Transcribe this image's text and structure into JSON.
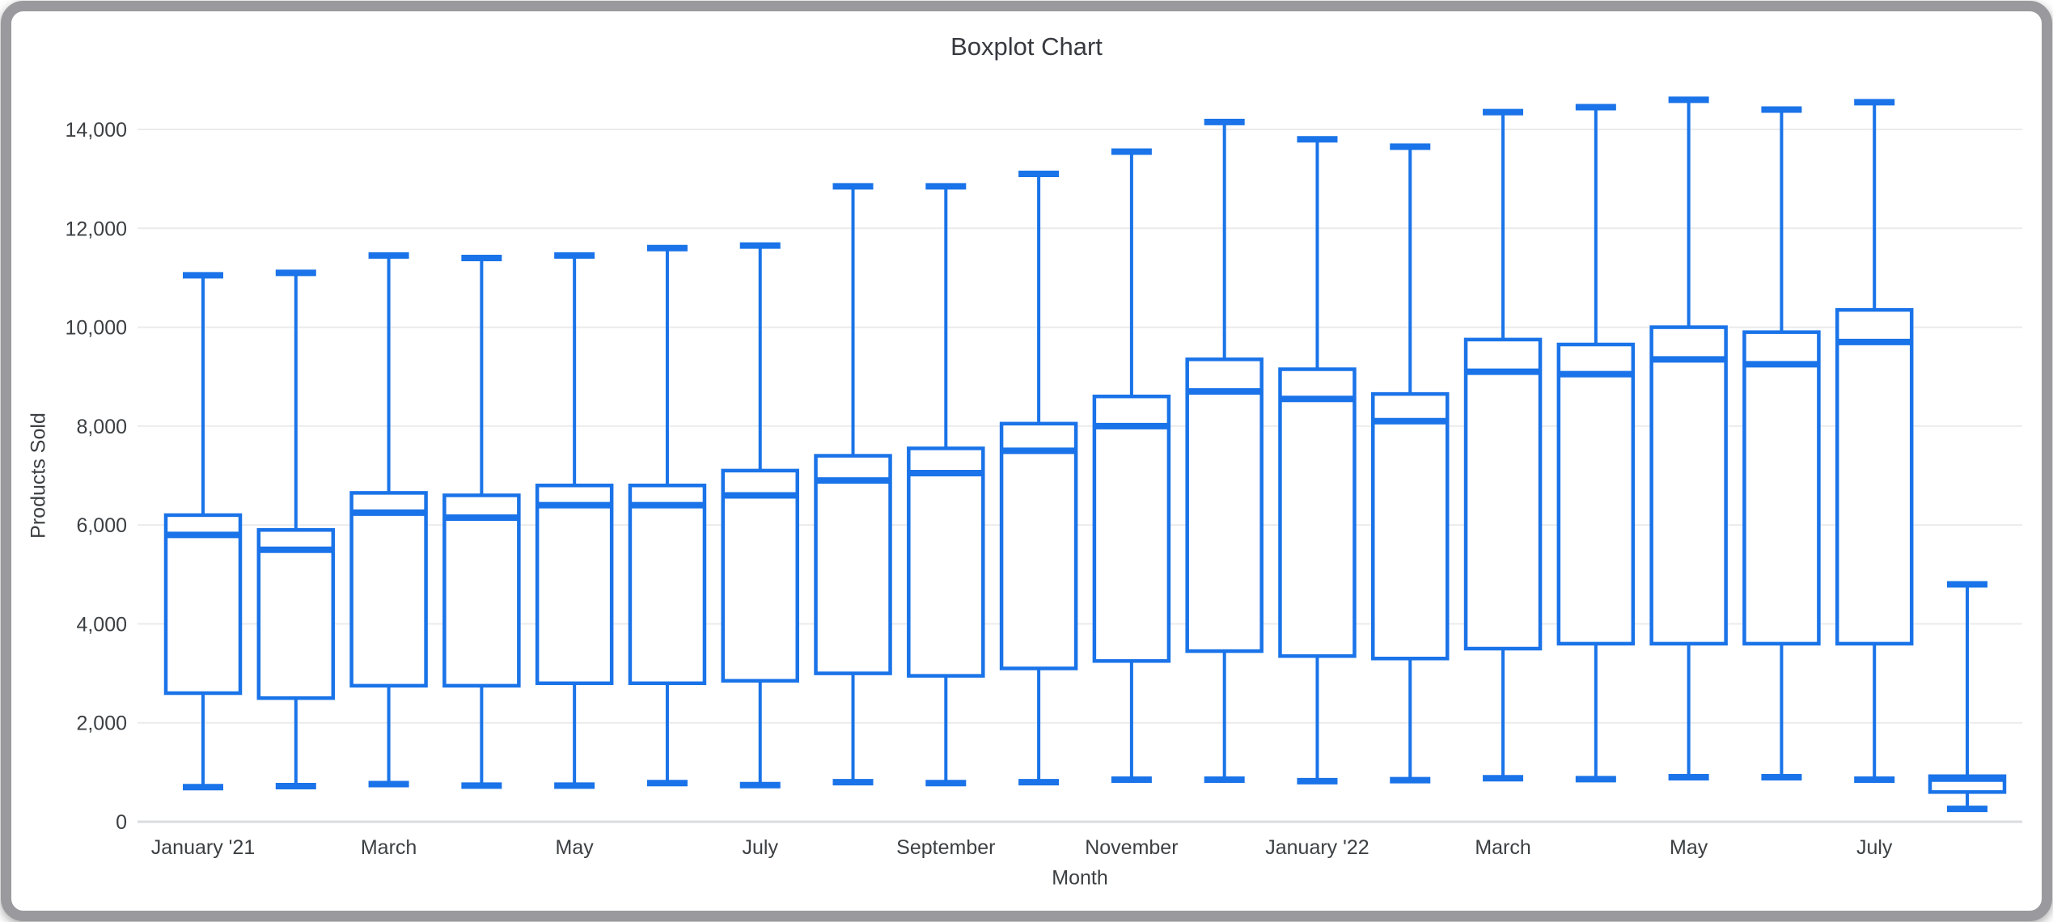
{
  "chart_data": {
    "type": "boxplot",
    "title": "Boxplot Chart",
    "xlabel": "Month",
    "ylabel": "Products Sold",
    "ylim": [
      0,
      14000
    ],
    "y_ticks": [
      0,
      2000,
      4000,
      6000,
      8000,
      10000,
      12000,
      14000
    ],
    "x_tick_labels_shown": [
      "January '21",
      "March",
      "May",
      "July",
      "September",
      "November",
      "January '22",
      "March",
      "May",
      "July"
    ],
    "legend": "none",
    "grid": "horizontal",
    "colors": {
      "accent": "#1a73e8",
      "grid": "#ebebeb",
      "baseline": "#dadce0",
      "text": "#3c4043",
      "title_text": "#37393f",
      "frame": "#9a9a9e",
      "box_fill": "#ffffff"
    },
    "boxes": [
      {
        "label": "January '21",
        "min": 700,
        "q1": 2600,
        "median": 5800,
        "q3": 6200,
        "max": 11050
      },
      {
        "label": "",
        "min": 720,
        "q1": 2500,
        "median": 5500,
        "q3": 5900,
        "max": 11100
      },
      {
        "label": "March",
        "min": 760,
        "q1": 2750,
        "median": 6250,
        "q3": 6650,
        "max": 11450
      },
      {
        "label": "",
        "min": 730,
        "q1": 2750,
        "median": 6150,
        "q3": 6600,
        "max": 11400
      },
      {
        "label": "May",
        "min": 730,
        "q1": 2800,
        "median": 6400,
        "q3": 6800,
        "max": 11450
      },
      {
        "label": "",
        "min": 780,
        "q1": 2800,
        "median": 6400,
        "q3": 6800,
        "max": 11600
      },
      {
        "label": "July",
        "min": 740,
        "q1": 2850,
        "median": 6600,
        "q3": 7100,
        "max": 11650
      },
      {
        "label": "",
        "min": 800,
        "q1": 3000,
        "median": 6900,
        "q3": 7400,
        "max": 12850
      },
      {
        "label": "September",
        "min": 780,
        "q1": 2950,
        "median": 7050,
        "q3": 7550,
        "max": 12850
      },
      {
        "label": "",
        "min": 800,
        "q1": 3100,
        "median": 7500,
        "q3": 8050,
        "max": 13100
      },
      {
        "label": "November",
        "min": 850,
        "q1": 3250,
        "median": 8000,
        "q3": 8600,
        "max": 13550
      },
      {
        "label": "",
        "min": 850,
        "q1": 3450,
        "median": 8700,
        "q3": 9350,
        "max": 14150
      },
      {
        "label": "January '22",
        "min": 820,
        "q1": 3350,
        "median": 8550,
        "q3": 9150,
        "max": 13800
      },
      {
        "label": "",
        "min": 840,
        "q1": 3300,
        "median": 8100,
        "q3": 8650,
        "max": 13650
      },
      {
        "label": "March",
        "min": 880,
        "q1": 3500,
        "median": 9100,
        "q3": 9750,
        "max": 14350
      },
      {
        "label": "",
        "min": 860,
        "q1": 3600,
        "median": 9050,
        "q3": 9650,
        "max": 14450
      },
      {
        "label": "May",
        "min": 900,
        "q1": 3600,
        "median": 9350,
        "q3": 10000,
        "max": 14600
      },
      {
        "label": "",
        "min": 900,
        "q1": 3600,
        "median": 9250,
        "q3": 9900,
        "max": 14400
      },
      {
        "label": "July",
        "min": 850,
        "q1": 3600,
        "median": 9700,
        "q3": 10350,
        "max": 14550
      },
      {
        "label": "",
        "min": 260,
        "q1": 600,
        "median": 870,
        "q3": 920,
        "max": 4800
      }
    ]
  }
}
